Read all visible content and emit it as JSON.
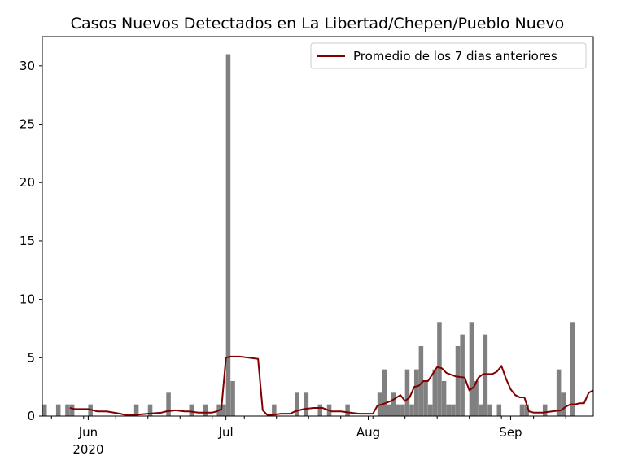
{
  "chart_data": {
    "type": "bar",
    "title": "Casos Nuevos Detectados en La Libertad/Chepen/Pueblo Nuevo",
    "xlabel": "",
    "ylabel": "",
    "x_start": "2020-05-22",
    "x_end": "2020-09-19",
    "ylim": [
      0,
      32.5
    ],
    "yticks": [
      0,
      5,
      10,
      15,
      20,
      25,
      30
    ],
    "xticks": [
      {
        "date": "2020-06-01",
        "label": "Jun",
        "sublabel": "2020"
      },
      {
        "date": "2020-07-01",
        "label": "Jul",
        "sublabel": ""
      },
      {
        "date": "2020-08-01",
        "label": "Aug",
        "sublabel": ""
      },
      {
        "date": "2020-09-01",
        "label": "Sep",
        "sublabel": ""
      }
    ],
    "grid": false,
    "legend_position": "top-right",
    "bar_color": "#808080",
    "line_color": "#800000",
    "series": [
      {
        "name": "",
        "kind": "bar",
        "dates": [
          "2020-05-22",
          "2020-05-25",
          "2020-05-27",
          "2020-05-28",
          "2020-06-01",
          "2020-06-11",
          "2020-06-14",
          "2020-06-18",
          "2020-06-23",
          "2020-06-26",
          "2020-06-29",
          "2020-06-30",
          "2020-07-01",
          "2020-07-02",
          "2020-07-11",
          "2020-07-16",
          "2020-07-18",
          "2020-07-21",
          "2020-07-23",
          "2020-07-27",
          "2020-08-03",
          "2020-08-04",
          "2020-08-05",
          "2020-08-06",
          "2020-08-07",
          "2020-08-08",
          "2020-08-09",
          "2020-08-10",
          "2020-08-11",
          "2020-08-12",
          "2020-08-13",
          "2020-08-14",
          "2020-08-15",
          "2020-08-16",
          "2020-08-17",
          "2020-08-18",
          "2020-08-19",
          "2020-08-20",
          "2020-08-21",
          "2020-08-23",
          "2020-08-24",
          "2020-08-25",
          "2020-08-26",
          "2020-08-27",
          "2020-08-29",
          "2020-09-03",
          "2020-09-04",
          "2020-09-08",
          "2020-09-11",
          "2020-09-12",
          "2020-09-14"
        ],
        "values": [
          1,
          1,
          1,
          1,
          1,
          1,
          1,
          2,
          1,
          1,
          1,
          1,
          31,
          3,
          1,
          2,
          2,
          1,
          1,
          1,
          2,
          4,
          1,
          2,
          1,
          1,
          4,
          1,
          4,
          6,
          3,
          1,
          4,
          8,
          3,
          1,
          1,
          6,
          7,
          8,
          3,
          1,
          7,
          1,
          1,
          1,
          1,
          1,
          4,
          2,
          8
        ]
      },
      {
        "name": "Promedio de los 7 dias anteriores",
        "kind": "line",
        "dates": [
          "2020-05-28",
          "2020-05-29",
          "2020-05-30",
          "2020-05-31",
          "2020-06-01",
          "2020-06-02",
          "2020-06-03",
          "2020-06-05",
          "2020-06-08",
          "2020-06-09",
          "2020-06-11",
          "2020-06-14",
          "2020-06-17",
          "2020-06-18",
          "2020-06-20",
          "2020-06-22",
          "2020-06-23",
          "2020-06-25",
          "2020-06-28",
          "2020-06-29",
          "2020-06-30",
          "2020-07-01",
          "2020-07-02",
          "2020-07-04",
          "2020-07-06",
          "2020-07-08",
          "2020-07-09",
          "2020-07-10",
          "2020-07-11",
          "2020-07-13",
          "2020-07-15",
          "2020-07-16",
          "2020-07-18",
          "2020-07-20",
          "2020-07-22",
          "2020-07-24",
          "2020-07-26",
          "2020-07-28",
          "2020-07-30",
          "2020-08-01",
          "2020-08-02",
          "2020-08-03",
          "2020-08-04",
          "2020-08-06",
          "2020-08-08",
          "2020-08-09",
          "2020-08-10",
          "2020-08-11",
          "2020-08-12",
          "2020-08-13",
          "2020-08-14",
          "2020-08-16",
          "2020-08-17",
          "2020-08-18",
          "2020-08-20",
          "2020-08-22",
          "2020-08-23",
          "2020-08-24",
          "2020-08-25",
          "2020-08-26",
          "2020-08-28",
          "2020-08-29",
          "2020-08-30",
          "2020-08-31",
          "2020-09-01",
          "2020-09-02",
          "2020-09-03",
          "2020-09-04",
          "2020-09-05",
          "2020-09-06",
          "2020-09-07",
          "2020-09-08",
          "2020-09-10",
          "2020-09-12",
          "2020-09-13",
          "2020-09-14",
          "2020-09-15",
          "2020-09-16",
          "2020-09-17",
          "2020-09-18",
          "2020-09-19"
        ],
        "values": [
          0.7,
          0.6,
          0.6,
          0.6,
          0.6,
          0.5,
          0.4,
          0.4,
          0.2,
          0.1,
          0.1,
          0.2,
          0.3,
          0.4,
          0.5,
          0.4,
          0.4,
          0.3,
          0.3,
          0.4,
          0.6,
          5.0,
          5.1,
          5.1,
          5.0,
          4.9,
          0.5,
          0.1,
          0.1,
          0.2,
          0.2,
          0.4,
          0.6,
          0.7,
          0.7,
          0.4,
          0.4,
          0.3,
          0.2,
          0.2,
          0.2,
          0.9,
          1.0,
          1.3,
          1.8,
          1.3,
          1.6,
          2.5,
          2.6,
          3.0,
          3.0,
          4.2,
          4.1,
          3.7,
          3.4,
          3.3,
          2.2,
          2.5,
          3.3,
          3.6,
          3.6,
          3.8,
          4.3,
          3.2,
          2.3,
          1.8,
          1.6,
          1.6,
          0.4,
          0.3,
          0.3,
          0.3,
          0.4,
          0.5,
          0.8,
          1.0,
          1.0,
          1.1,
          1.1,
          2.0,
          2.2
        ]
      }
    ]
  }
}
